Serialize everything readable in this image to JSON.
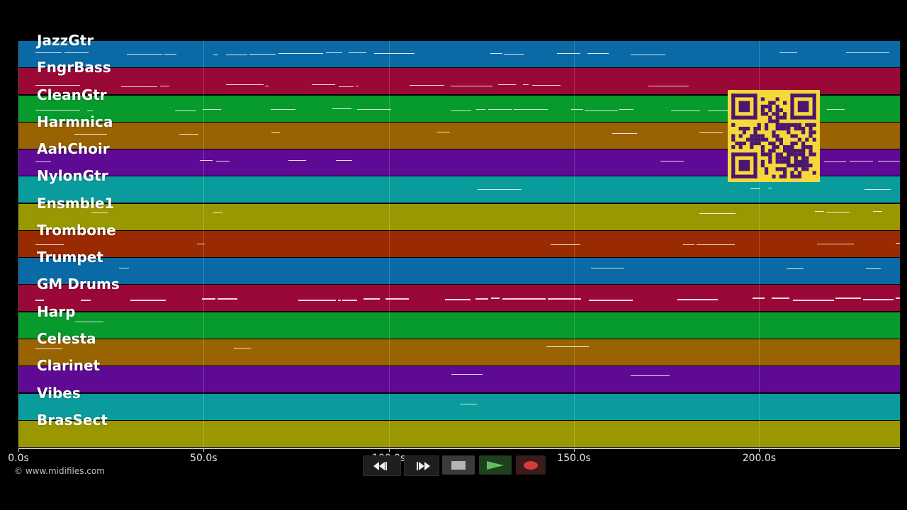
{
  "tracks": [
    {
      "name": "JazzGtr",
      "color": "#0a6aa6"
    },
    {
      "name": "FngrBass",
      "color": "#9a0837"
    },
    {
      "name": "CleanGtr",
      "color": "#079a2c"
    },
    {
      "name": "Harmnica",
      "color": "#986300"
    },
    {
      "name": "AahChoir",
      "color": "#5f0a94"
    },
    {
      "name": "NylonGtr",
      "color": "#0a9c9c"
    },
    {
      "name": "Ensmble1",
      "color": "#9a9800"
    },
    {
      "name": "Trombone",
      "color": "#9a2a00"
    },
    {
      "name": "Trumpet",
      "color": "#0a6aa6"
    },
    {
      "name": "GM Drums",
      "color": "#9a0837"
    },
    {
      "name": "Harp",
      "color": "#079a2c"
    },
    {
      "name": "Celesta",
      "color": "#986300"
    },
    {
      "name": "Clarinet",
      "color": "#5f0a94"
    },
    {
      "name": "Vibes",
      "color": "#0a9c9c"
    },
    {
      "name": "BrasSect",
      "color": "#9a9800"
    }
  ],
  "timeline": {
    "ticks": [
      "0.0s",
      "50.0s",
      "100.0s",
      "150.0s",
      "200.0s"
    ],
    "tick_seconds": [
      0,
      50,
      100,
      150,
      200
    ],
    "max_seconds": 238
  },
  "copyright": "© www.midifiles.com",
  "controls": [
    {
      "name": "rewind-button",
      "icon": "rewind-icon"
    },
    {
      "name": "fast-forward-button",
      "icon": "fast-forward-icon"
    },
    {
      "name": "stop-button",
      "icon": "stop-icon"
    },
    {
      "name": "play-button",
      "icon": "play-icon"
    },
    {
      "name": "record-button",
      "icon": "record-icon"
    }
  ],
  "qr_icon": "qr-code-icon"
}
